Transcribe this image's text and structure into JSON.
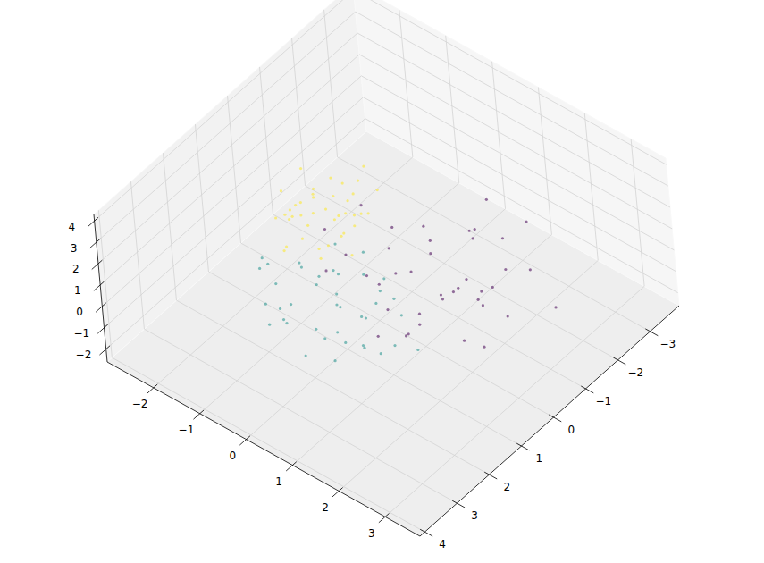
{
  "chart_data": {
    "type": "scatter3d",
    "xlim": [
      -3.0,
      3.75
    ],
    "ylim": [
      -3.9,
      4.15
    ],
    "zlim": [
      -2.6,
      4.3
    ],
    "xticks": [
      {
        "value": -2,
        "label": "−2"
      },
      {
        "value": -1,
        "label": "−1"
      },
      0,
      1,
      2,
      3
    ],
    "yticks": [
      {
        "value": -3,
        "label": "−3"
      },
      {
        "value": -2,
        "label": "−2"
      },
      {
        "value": -1,
        "label": "−1"
      },
      0,
      1,
      2,
      3,
      4
    ],
    "zticks": [
      {
        "value": -2,
        "label": "−2"
      },
      {
        "value": -1,
        "label": "−1"
      },
      0,
      1,
      2,
      3,
      4
    ],
    "grid": true,
    "series": [
      {
        "color": "#440154",
        "x": [
          0.3,
          1.5,
          -0.4,
          1.0,
          2.1,
          0.6,
          -0.9,
          1.8,
          0.0,
          1.2,
          2.6,
          0.4,
          -0.2,
          1.6,
          0.9,
          -1.3,
          0.7,
          2.0,
          1.1,
          0.2,
          -0.6,
          1.4,
          2.4,
          0.5,
          1.0,
          -0.1,
          1.9,
          0.8,
          3.0,
          0.1,
          1.3,
          -0.8,
          0.6,
          1.7,
          2.2,
          0.3,
          1.1,
          -0.4,
          0.9,
          1.5
        ],
        "y": [
          -0.2,
          -1.1,
          0.3,
          -0.6,
          -1.8,
          0.5,
          -0.9,
          -0.1,
          -1.5,
          0.8,
          -0.4,
          -2.3,
          -0.7,
          0.2,
          -1.2,
          -0.3,
          -2.0,
          -0.8,
          0.6,
          -1.4,
          -0.5,
          -2.7,
          0.1,
          -1.0,
          -1.7,
          -0.2,
          -0.6,
          1.1,
          -1.3,
          -0.9,
          -2.1,
          0.4,
          -0.4,
          -1.6,
          -0.1,
          -3.0,
          -0.8,
          -1.1,
          0.0,
          -0.7
        ],
        "z": [
          -0.3,
          -0.9,
          0.4,
          -1.2,
          -0.1,
          -0.7,
          0.5,
          -1.5,
          -0.2,
          -0.8,
          0.2,
          -1.0,
          -0.4,
          0.8,
          -1.6,
          -0.3,
          -0.6,
          0.3,
          -1.1,
          -0.5,
          -1.9,
          0.1,
          -0.8,
          -0.2,
          0.6,
          -1.3,
          -0.4,
          -0.9,
          -0.1,
          -1.4,
          0.0,
          -0.7,
          -2.1,
          -0.3,
          0.9,
          -0.6,
          -1.0,
          -0.2,
          -1.7,
          0.2
        ]
      },
      {
        "color": "#21918c",
        "x": [
          -0.5,
          0.6,
          0.2,
          -1.1,
          0.9,
          -0.3,
          0.4,
          -0.8,
          1.3,
          0.0,
          -0.6,
          0.7,
          -1.4,
          0.3,
          1.0,
          -0.2,
          0.5,
          -0.9,
          0.1,
          1.6,
          -0.4,
          0.8,
          -1.2,
          0.2,
          -0.7,
          1.1,
          0.0,
          -0.3,
          0.6,
          -1.0,
          0.4,
          1.4,
          -0.5,
          0.9,
          -0.1,
          -1.6,
          0.3,
          0.7,
          -0.8,
          0.1
        ],
        "y": [
          1.0,
          1.8,
          0.6,
          1.5,
          1.2,
          2.3,
          0.9,
          1.1,
          1.7,
          0.3,
          2.0,
          1.4,
          1.3,
          2.6,
          0.8,
          1.6,
          0.4,
          2.1,
          1.2,
          1.0,
          0.7,
          2.4,
          1.8,
          1.5,
          0.2,
          1.9,
          1.1,
          2.8,
          1.3,
          0.9,
          1.7,
          1.4,
          2.2,
          0.5,
          1.6,
          1.2,
          2.0,
          0.8,
          1.5,
          1.3
        ],
        "z": [
          0.2,
          -0.5,
          0.6,
          -0.2,
          0.9,
          0.0,
          -0.8,
          0.4,
          -0.3,
          1.0,
          -0.6,
          0.3,
          0.1,
          -0.4,
          0.7,
          -1.1,
          0.5,
          -0.1,
          1.3,
          -0.7,
          0.2,
          -0.3,
          0.8,
          -0.9,
          0.4,
          0.0,
          -0.5,
          0.6,
          -1.3,
          0.1,
          0.9,
          -0.2,
          0.3,
          -0.6,
          1.1,
          0.0,
          -0.4,
          0.7,
          -0.8,
          0.5
        ]
      },
      {
        "color": "#fde725",
        "x": [
          -1.4,
          -0.6,
          -1.1,
          -0.8,
          -1.7,
          -0.3,
          -1.2,
          -0.9,
          -1.5,
          -0.5,
          -1.0,
          -1.3,
          -0.7,
          -1.9,
          -0.2,
          -1.1,
          -0.8,
          -1.6,
          -0.4,
          -1.0,
          -1.2,
          -0.6,
          -1.4,
          -0.9,
          -0.1,
          -1.8,
          -1.0,
          -0.7,
          -1.3,
          -0.5,
          -1.1,
          -0.9,
          -1.5,
          -0.8,
          -1.2,
          -0.4,
          -1.0,
          -1.6,
          -0.6,
          -1.3
        ],
        "y": [
          0.2,
          -0.5,
          0.6,
          -0.1,
          0.3,
          0.1,
          -0.8,
          0.5,
          -0.3,
          0.9,
          0.0,
          -0.6,
          0.4,
          0.1,
          -0.2,
          1.1,
          -0.4,
          0.7,
          0.2,
          -1.0,
          0.3,
          0.8,
          -0.2,
          -0.7,
          0.5,
          -0.4,
          1.3,
          0.0,
          0.6,
          -0.9,
          0.2,
          -0.1,
          0.4,
          1.0,
          -0.5,
          0.3,
          -1.2,
          0.1,
          -0.3,
          0.7
        ],
        "z": [
          1.5,
          1.0,
          1.8,
          1.2,
          0.7,
          1.6,
          1.3,
          2.0,
          1.1,
          0.9,
          1.4,
          1.7,
          0.6,
          1.3,
          1.9,
          1.0,
          1.5,
          1.2,
          2.2,
          1.4,
          0.8,
          1.1,
          1.6,
          1.3,
          1.0,
          1.8,
          1.2,
          0.5,
          1.5,
          1.7,
          2.1,
          0.9,
          1.3,
          1.6,
          1.1,
          1.4,
          1.8,
          1.0,
          1.2,
          1.5
        ]
      }
    ]
  }
}
